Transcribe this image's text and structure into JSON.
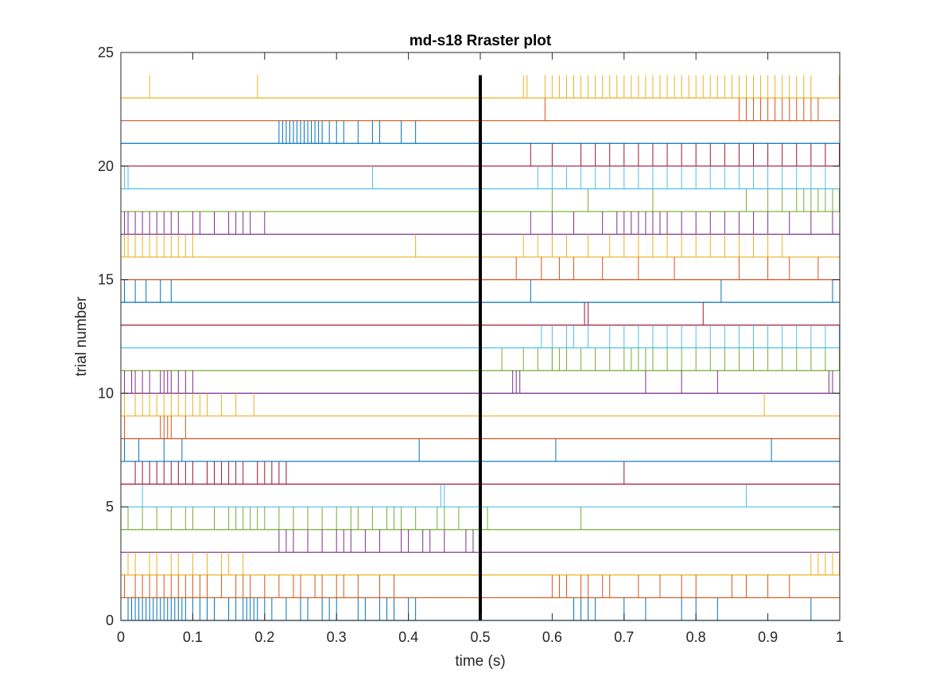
{
  "chart_data": {
    "type": "raster",
    "title": "md-s18 Rraster plot",
    "xlabel": "time (s)",
    "ylabel": "trial number",
    "xlim": [
      0,
      1
    ],
    "ylim": [
      0,
      25
    ],
    "xticks": [
      "0",
      "0.1",
      "0.2",
      "0.3",
      "0.4",
      "0.5",
      "0.6",
      "0.7",
      "0.8",
      "0.9",
      "1"
    ],
    "yticks": [
      "0",
      "5",
      "10",
      "15",
      "20",
      "25"
    ],
    "event_marker": {
      "x": 0.5,
      "y_range": [
        0,
        24
      ],
      "color": "#000000"
    },
    "grid": false,
    "legend": "none",
    "series": [
      {
        "trial": 1,
        "color": "#0072BD",
        "spikes": [
          0.01,
          0.015,
          0.02,
          0.025,
          0.03,
          0.035,
          0.04,
          0.045,
          0.05,
          0.055,
          0.06,
          0.065,
          0.07,
          0.075,
          0.08,
          0.085,
          0.09,
          0.1,
          0.11,
          0.12,
          0.13,
          0.15,
          0.16,
          0.17,
          0.175,
          0.18,
          0.185,
          0.19,
          0.2,
          0.21,
          0.23,
          0.25,
          0.26,
          0.28,
          0.29,
          0.3,
          0.33,
          0.34,
          0.36,
          0.37,
          0.38,
          0.4,
          0.41,
          0.63,
          0.64,
          0.65,
          0.66,
          0.7,
          0.73,
          0.78,
          0.8,
          0.83,
          0.96
        ]
      },
      {
        "trial": 2,
        "color": "#D95319",
        "spikes": [
          0.005,
          0.02,
          0.03,
          0.04,
          0.05,
          0.06,
          0.07,
          0.08,
          0.09,
          0.1,
          0.11,
          0.12,
          0.14,
          0.16,
          0.17,
          0.18,
          0.2,
          0.22,
          0.24,
          0.25,
          0.27,
          0.28,
          0.3,
          0.31,
          0.33,
          0.36,
          0.38,
          0.6,
          0.61,
          0.62,
          0.64,
          0.65,
          0.67,
          0.68,
          0.72,
          0.75,
          0.78,
          0.8,
          0.85,
          0.87,
          0.9,
          0.93
        ]
      },
      {
        "trial": 3,
        "color": "#EDB120",
        "spikes": [
          0.01,
          0.02,
          0.04,
          0.05,
          0.07,
          0.08,
          0.1,
          0.12,
          0.14,
          0.15,
          0.17,
          0.96,
          0.97,
          0.98,
          0.99,
          1.0
        ]
      },
      {
        "trial": 4,
        "color": "#7E2F8E",
        "spikes": [
          0.22,
          0.23,
          0.24,
          0.26,
          0.28,
          0.3,
          0.31,
          0.32,
          0.34,
          0.36,
          0.39,
          0.4,
          0.42,
          0.43,
          0.45,
          0.48,
          0.49
        ]
      },
      {
        "trial": 5,
        "color": "#77AC30",
        "spikes": [
          0.01,
          0.03,
          0.05,
          0.07,
          0.09,
          0.1,
          0.13,
          0.15,
          0.16,
          0.17,
          0.18,
          0.19,
          0.2,
          0.22,
          0.24,
          0.26,
          0.28,
          0.3,
          0.32,
          0.33,
          0.35,
          0.37,
          0.38,
          0.39,
          0.41,
          0.44,
          0.45,
          0.47,
          0.51,
          0.64
        ]
      },
      {
        "trial": 6,
        "color": "#4DBEEE",
        "spikes": [
          0.03,
          0.445,
          0.45,
          0.87
        ]
      },
      {
        "trial": 7,
        "color": "#A2142F",
        "spikes": [
          0.02,
          0.03,
          0.04,
          0.05,
          0.06,
          0.07,
          0.08,
          0.09,
          0.1,
          0.12,
          0.13,
          0.14,
          0.15,
          0.16,
          0.17,
          0.19,
          0.2,
          0.21,
          0.22,
          0.23,
          0.7
        ]
      },
      {
        "trial": 8,
        "color": "#0072BD",
        "spikes": [
          0.005,
          0.025,
          0.06,
          0.085,
          0.415,
          0.605,
          0.905
        ]
      },
      {
        "trial": 9,
        "color": "#D95319",
        "spikes": [
          0.005,
          0.055,
          0.06,
          0.065,
          0.07,
          0.09
        ]
      },
      {
        "trial": 10,
        "color": "#EDB120",
        "spikes": [
          0.005,
          0.02,
          0.03,
          0.04,
          0.05,
          0.06,
          0.07,
          0.08,
          0.09,
          0.1,
          0.11,
          0.12,
          0.14,
          0.16,
          0.185,
          0.895
        ]
      },
      {
        "trial": 11,
        "color": "#7E2F8E",
        "spikes": [
          0.005,
          0.015,
          0.02,
          0.03,
          0.04,
          0.055,
          0.06,
          0.065,
          0.07,
          0.08,
          0.09,
          0.1,
          0.545,
          0.55,
          0.555,
          0.73,
          0.78,
          0.83,
          0.985,
          0.99
        ]
      },
      {
        "trial": 12,
        "color": "#77AC30",
        "spikes": [
          0.53,
          0.56,
          0.58,
          0.6,
          0.6,
          0.61,
          0.62,
          0.64,
          0.66,
          0.68,
          0.7,
          0.71,
          0.72,
          0.73,
          0.74,
          0.76,
          0.78,
          0.8,
          0.82,
          0.84,
          0.86,
          0.88,
          0.9,
          0.92,
          0.94,
          0.96,
          0.98,
          1.0
        ]
      },
      {
        "trial": 13,
        "color": "#4DBEEE",
        "spikes": [
          0.585,
          0.6,
          0.62,
          0.63,
          0.65,
          0.68,
          0.7,
          0.72,
          0.74,
          0.76,
          0.78,
          0.8,
          0.82,
          0.84,
          0.86,
          0.88,
          0.9,
          0.92,
          0.94,
          0.96,
          0.98,
          1.0
        ]
      },
      {
        "trial": 14,
        "color": "#A2142F",
        "spikes": [
          0.645,
          0.65,
          0.81
        ]
      },
      {
        "trial": 15,
        "color": "#0072BD",
        "spikes": [
          0.005,
          0.02,
          0.035,
          0.055,
          0.07,
          0.57,
          0.835,
          0.99
        ]
      },
      {
        "trial": 16,
        "color": "#D95319",
        "spikes": [
          0.55,
          0.585,
          0.61,
          0.63,
          0.67,
          0.72,
          0.77,
          0.86,
          0.9,
          0.93,
          0.97
        ]
      },
      {
        "trial": 17,
        "color": "#EDB120",
        "spikes": [
          0.005,
          0.01,
          0.02,
          0.03,
          0.04,
          0.05,
          0.06,
          0.07,
          0.08,
          0.09,
          0.1,
          0.41,
          0.56,
          0.58,
          0.6,
          0.62,
          0.65,
          0.68,
          0.7,
          0.72,
          0.74,
          0.76,
          0.78,
          0.8,
          0.82,
          0.84,
          0.86,
          0.88,
          0.9,
          0.92
        ]
      },
      {
        "trial": 18,
        "color": "#7E2F8E",
        "spikes": [
          0.005,
          0.01,
          0.02,
          0.03,
          0.04,
          0.05,
          0.06,
          0.07,
          0.08,
          0.1,
          0.11,
          0.13,
          0.15,
          0.16,
          0.17,
          0.18,
          0.2,
          0.57,
          0.6,
          0.63,
          0.67,
          0.69,
          0.7,
          0.71,
          0.72,
          0.73,
          0.74,
          0.75,
          0.76,
          0.78,
          0.8,
          0.82,
          0.84,
          0.86,
          0.88,
          0.9,
          0.93,
          0.96,
          0.99
        ]
      },
      {
        "trial": 19,
        "color": "#77AC30",
        "spikes": [
          0.6,
          0.65,
          0.74,
          0.87,
          0.9,
          0.92,
          0.94,
          0.95,
          0.96,
          0.97,
          0.98,
          0.99,
          1.0
        ]
      },
      {
        "trial": 20,
        "color": "#4DBEEE",
        "spikes": [
          0.005,
          0.01,
          0.35,
          0.58,
          0.6,
          0.62,
          0.64,
          0.66,
          0.68,
          0.7,
          0.72,
          0.74,
          0.76,
          0.78,
          0.8,
          0.82,
          0.84,
          0.86,
          0.88,
          0.9,
          0.92,
          0.94,
          0.96,
          0.98
        ]
      },
      {
        "trial": 21,
        "color": "#A2142F",
        "spikes": [
          0.5,
          0.57,
          0.6,
          0.64,
          0.66,
          0.68,
          0.7,
          0.72,
          0.74,
          0.76,
          0.78,
          0.8,
          0.82,
          0.84,
          0.86,
          0.88,
          0.9,
          0.92,
          0.94,
          0.96,
          0.98,
          1.0
        ]
      },
      {
        "trial": 22,
        "color": "#0072BD",
        "spikes": [
          0.22,
          0.225,
          0.23,
          0.235,
          0.24,
          0.245,
          0.25,
          0.255,
          0.26,
          0.265,
          0.27,
          0.275,
          0.28,
          0.29,
          0.3,
          0.31,
          0.33,
          0.35,
          0.36,
          0.39,
          0.41
        ]
      },
      {
        "trial": 23,
        "color": "#D95319",
        "spikes": [
          0.59,
          0.86,
          0.87,
          0.88,
          0.89,
          0.9,
          0.91,
          0.92,
          0.93,
          0.94,
          0.95,
          0.96,
          0.97
        ]
      },
      {
        "trial": 24,
        "color": "#EDB120",
        "spikes": [
          0.04,
          0.19,
          0.56,
          0.565,
          0.59,
          0.6,
          0.61,
          0.62,
          0.63,
          0.64,
          0.65,
          0.66,
          0.67,
          0.68,
          0.69,
          0.7,
          0.71,
          0.72,
          0.73,
          0.74,
          0.75,
          0.76,
          0.77,
          0.78,
          0.79,
          0.8,
          0.81,
          0.82,
          0.83,
          0.84,
          0.85,
          0.86,
          0.87,
          0.88,
          0.89,
          0.9,
          0.91,
          0.92,
          0.93,
          0.94,
          0.95,
          0.96,
          1.0
        ]
      }
    ]
  }
}
